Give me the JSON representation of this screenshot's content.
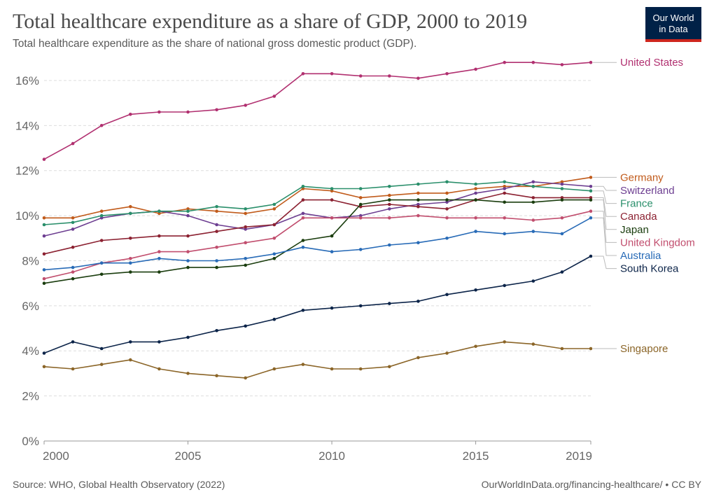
{
  "header": {
    "title": "Total healthcare expenditure as a share of GDP, 2000 to 2019",
    "subtitle": "Total healthcare expenditure as the share of national gross domestic product (GDP).",
    "logo_line1": "Our World",
    "logo_line2": "in Data"
  },
  "footer": {
    "source": "Source: WHO, Global Health Observatory (2022)",
    "link": "OurWorldInData.org/financing-healthcare/ • CC BY"
  },
  "chart_data": {
    "type": "line",
    "title": "Total healthcare expenditure as a share of GDP, 2000 to 2019",
    "subtitle": "Total healthcare expenditure as the share of national gross domestic product (GDP).",
    "x": [
      2000,
      2001,
      2002,
      2003,
      2004,
      2005,
      2006,
      2007,
      2008,
      2009,
      2010,
      2011,
      2012,
      2013,
      2014,
      2015,
      2016,
      2017,
      2018,
      2019
    ],
    "xlim": [
      2000,
      2019
    ],
    "ylim": [
      0,
      16.9
    ],
    "x_ticks": [
      {
        "value": 2000,
        "label": "2000"
      },
      {
        "value": 2005,
        "label": "2005"
      },
      {
        "value": 2010,
        "label": "2010"
      },
      {
        "value": 2015,
        "label": "2015"
      },
      {
        "value": 2019,
        "label": "2019"
      }
    ],
    "y_ticks": [
      {
        "value": 0,
        "label": "0%"
      },
      {
        "value": 2,
        "label": "2%"
      },
      {
        "value": 4,
        "label": "4%"
      },
      {
        "value": 6,
        "label": "6%"
      },
      {
        "value": 8,
        "label": "8%"
      },
      {
        "value": 10,
        "label": "10%"
      },
      {
        "value": 12,
        "label": "12%"
      },
      {
        "value": 14,
        "label": "14%"
      },
      {
        "value": 16,
        "label": "16%"
      }
    ],
    "grid": "horizontal dashed",
    "legend": "right, labels at line ends",
    "series": [
      {
        "name": "United States",
        "color": "#b13070",
        "values": [
          12.5,
          13.2,
          14.0,
          14.5,
          14.6,
          14.6,
          14.7,
          14.9,
          15.3,
          16.3,
          16.3,
          16.2,
          16.2,
          16.1,
          16.3,
          16.5,
          16.8,
          16.8,
          16.7,
          16.8
        ]
      },
      {
        "name": "Germany",
        "color": "#c15b1b",
        "values": [
          9.9,
          9.9,
          10.2,
          10.4,
          10.1,
          10.3,
          10.2,
          10.1,
          10.3,
          11.2,
          11.1,
          10.8,
          10.9,
          11.0,
          11.0,
          11.2,
          11.3,
          11.3,
          11.5,
          11.7
        ]
      },
      {
        "name": "Switzerland",
        "color": "#6d3e91",
        "values": [
          9.1,
          9.4,
          9.9,
          10.1,
          10.2,
          10.0,
          9.6,
          9.4,
          9.6,
          10.1,
          9.9,
          10.0,
          10.3,
          10.5,
          10.6,
          11.0,
          11.2,
          11.5,
          11.4,
          11.3
        ]
      },
      {
        "name": "France",
        "color": "#2a8f6b",
        "values": [
          9.6,
          9.7,
          10.0,
          10.1,
          10.2,
          10.2,
          10.4,
          10.3,
          10.5,
          11.3,
          11.2,
          11.2,
          11.3,
          11.4,
          11.5,
          11.4,
          11.5,
          11.3,
          11.2,
          11.1
        ]
      },
      {
        "name": "Canada",
        "color": "#8c2232",
        "values": [
          8.3,
          8.6,
          8.9,
          9.0,
          9.1,
          9.1,
          9.3,
          9.5,
          9.6,
          10.7,
          10.7,
          10.4,
          10.5,
          10.4,
          10.3,
          10.7,
          11.0,
          10.8,
          10.8,
          10.8
        ]
      },
      {
        "name": "Japan",
        "color": "#1a3d0e",
        "values": [
          7.0,
          7.2,
          7.4,
          7.5,
          7.5,
          7.7,
          7.7,
          7.8,
          8.1,
          8.9,
          9.1,
          10.5,
          10.7,
          10.7,
          10.7,
          10.7,
          10.6,
          10.6,
          10.7,
          10.7
        ]
      },
      {
        "name": "United Kingdom",
        "color": "#c14e6e",
        "values": [
          7.2,
          7.5,
          7.9,
          8.1,
          8.4,
          8.4,
          8.6,
          8.8,
          9.0,
          9.9,
          9.9,
          9.9,
          9.9,
          10.0,
          9.9,
          9.9,
          9.9,
          9.8,
          9.9,
          10.2
        ]
      },
      {
        "name": "Australia",
        "color": "#286bb7",
        "values": [
          7.6,
          7.7,
          7.9,
          7.9,
          8.1,
          8.0,
          8.0,
          8.1,
          8.3,
          8.6,
          8.4,
          8.5,
          8.7,
          8.8,
          9.0,
          9.3,
          9.2,
          9.3,
          9.2,
          9.9
        ]
      },
      {
        "name": "South Korea",
        "color": "#0c2449",
        "values": [
          3.9,
          4.4,
          4.1,
          4.4,
          4.4,
          4.6,
          4.9,
          5.1,
          5.4,
          5.8,
          5.9,
          6.0,
          6.1,
          6.2,
          6.5,
          6.7,
          6.9,
          7.1,
          7.5,
          8.2
        ]
      },
      {
        "name": "Singapore",
        "color": "#8b6528",
        "values": [
          3.3,
          3.2,
          3.4,
          3.6,
          3.2,
          3.0,
          2.9,
          2.8,
          3.2,
          3.4,
          3.2,
          3.2,
          3.3,
          3.7,
          3.9,
          4.2,
          4.4,
          4.3,
          4.1,
          4.1
        ]
      }
    ]
  }
}
